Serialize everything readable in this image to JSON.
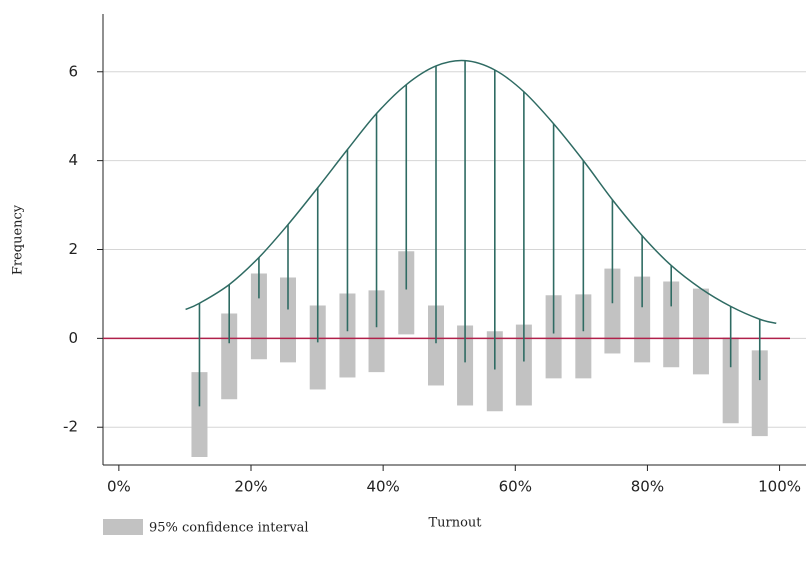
{
  "chart_data": {
    "type": "rootogram",
    "xlabel": "Turnout",
    "ylabel": "Frequency",
    "xlim": [
      -2.4,
      104
    ],
    "ylim": [
      -2.85,
      7.3
    ],
    "xticks": [
      {
        "value": 0,
        "label": "0%"
      },
      {
        "value": 20,
        "label": "20%"
      },
      {
        "value": 40,
        "label": "40%"
      },
      {
        "value": 60,
        "label": "60%"
      },
      {
        "value": 80,
        "label": "80%"
      },
      {
        "value": 100,
        "label": "100%"
      }
    ],
    "yticks": [
      -2,
      0,
      2,
      4,
      6
    ],
    "grid": true,
    "reference_line": {
      "value": 0,
      "color": "#b0204a"
    },
    "curve": {
      "color": "#2f6b63",
      "x": [
        10.1,
        12.2,
        16.7,
        21.2,
        25.6,
        30.1,
        34.6,
        39.0,
        43.5,
        48.0,
        52.4,
        56.9,
        61.3,
        65.8,
        70.3,
        74.7,
        79.2,
        83.6,
        88.1,
        92.6,
        97.0,
        99.5
      ],
      "values": [
        0.65,
        0.79,
        1.21,
        1.82,
        2.56,
        3.39,
        4.25,
        5.06,
        5.71,
        6.13,
        6.25,
        6.04,
        5.55,
        4.83,
        4.0,
        3.12,
        2.31,
        1.64,
        1.12,
        0.72,
        0.43,
        0.34
      ]
    },
    "bins": {
      "color": "#2f6b63",
      "x": [
        12.2,
        16.7,
        21.2,
        25.6,
        30.1,
        34.6,
        39.0,
        43.5,
        48.0,
        52.4,
        56.9,
        61.3,
        65.8,
        70.3,
        74.7,
        79.2,
        83.6,
        88.1,
        92.6,
        97.0
      ],
      "stem_top": [
        0.79,
        1.21,
        1.82,
        2.56,
        3.39,
        4.25,
        5.06,
        5.71,
        6.13,
        6.25,
        6.04,
        5.55,
        4.83,
        4.0,
        3.12,
        2.31,
        1.64,
        1.12,
        0.72,
        0.43
      ],
      "stem_bottom": [
        -1.53,
        -0.11,
        0.9,
        0.65,
        -0.09,
        0.16,
        0.25,
        1.1,
        -0.11,
        -0.54,
        -0.7,
        -0.52,
        0.11,
        0.16,
        0.79,
        0.7,
        0.72,
        1.12,
        -0.65,
        -0.94
      ]
    },
    "interval": {
      "name": "95% confidence interval",
      "color": "#c2c2c2",
      "high": [
        -0.76,
        0.56,
        1.46,
        1.37,
        0.74,
        1.01,
        1.08,
        1.96,
        0.74,
        0.29,
        0.16,
        0.31,
        0.97,
        0.99,
        1.57,
        1.39,
        1.28,
        1.12,
        0.02,
        -0.27
      ],
      "low": [
        -2.67,
        -1.37,
        -0.47,
        -0.54,
        -1.15,
        -0.88,
        -0.76,
        0.09,
        -1.06,
        -1.51,
        -1.64,
        -1.51,
        -0.9,
        -0.9,
        -0.34,
        -0.54,
        -0.65,
        -0.81,
        -1.91,
        -2.2
      ]
    }
  }
}
